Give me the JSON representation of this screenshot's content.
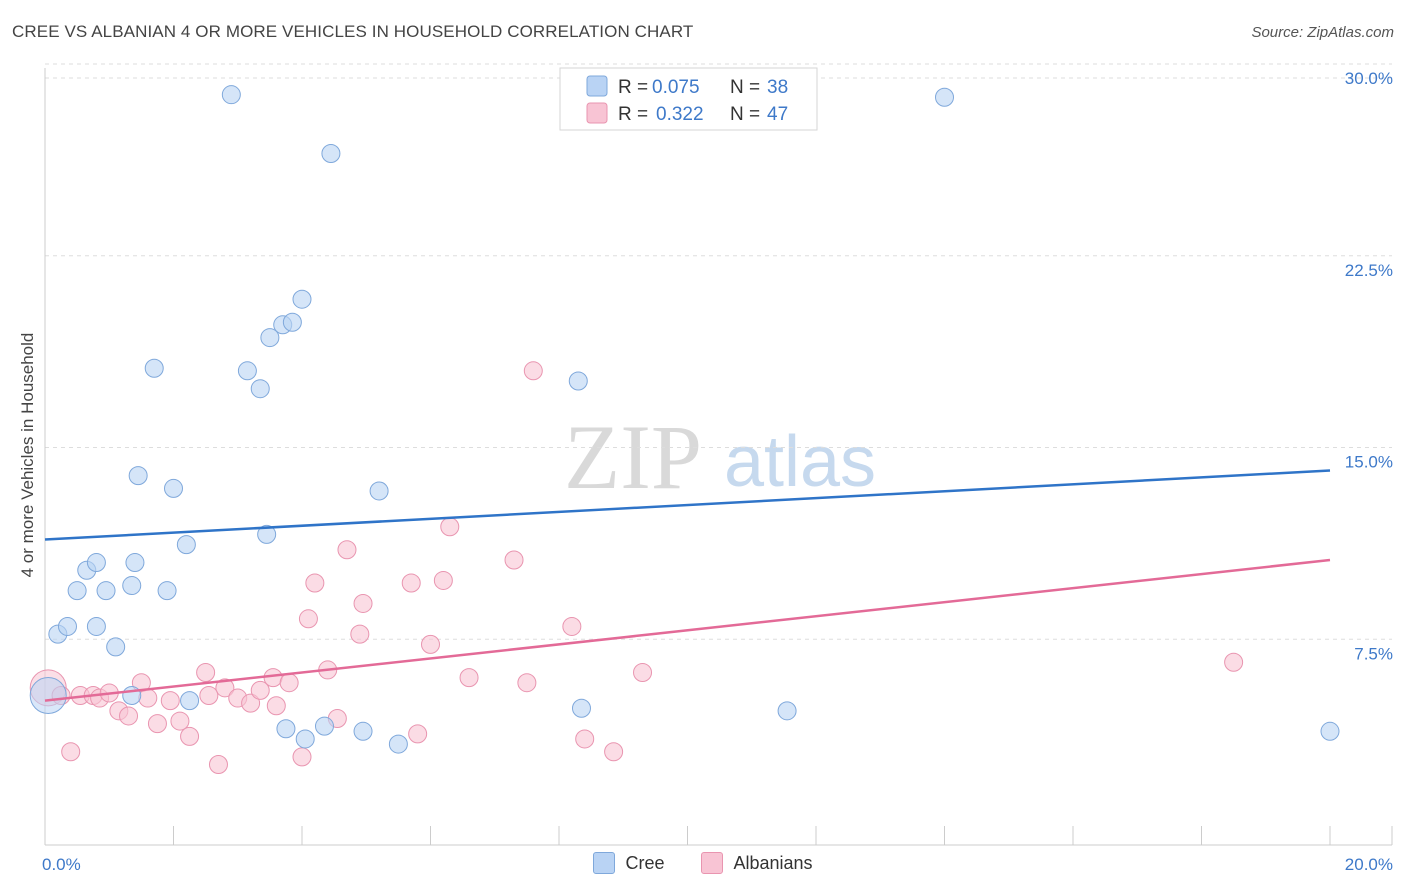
{
  "header": {
    "title": "CREE VS ALBANIAN 4 OR MORE VEHICLES IN HOUSEHOLD CORRELATION CHART",
    "source": "Source: ZipAtlas.com"
  },
  "watermark": {
    "zip": "ZIP",
    "atlas": "atlas"
  },
  "legend_top": {
    "rows": [
      {
        "r_label": "R =",
        "r_value": "0.075",
        "n_label": "N =",
        "n_value": "38"
      },
      {
        "r_label": "R =",
        "r_value": "0.322",
        "n_label": "N =",
        "n_value": "47"
      }
    ]
  },
  "legend_bottom": {
    "cree": "Cree",
    "albanians": "Albanians"
  },
  "colors": {
    "cree_fill": "#b9d3f4",
    "cree_stroke": "#7fa8db",
    "cree_line": "#2f74c8",
    "alb_fill": "#f8c4d4",
    "alb_stroke": "#e995b0",
    "alb_line": "#e36a97",
    "tick_label": "#3e79c9"
  },
  "chart_data": {
    "type": "scatter",
    "title": "CREE VS ALBANIAN 4 OR MORE VEHICLES IN HOUSEHOLD CORRELATION CHART",
    "xlabel": "",
    "ylabel": "4 or more Vehicles in Household",
    "xlim": [
      0,
      20
    ],
    "ylim": [
      0,
      30
    ],
    "x_ticks": [
      {
        "value": 0,
        "label": "0.0%"
      },
      {
        "value": 20,
        "label": "20.0%"
      }
    ],
    "y_ticks": [
      {
        "value": 7.5,
        "label": "7.5%"
      },
      {
        "value": 15,
        "label": "15.0%"
      },
      {
        "value": 22.5,
        "label": "22.5%"
      },
      {
        "value": 30,
        "label": "30.0%"
      }
    ],
    "grid": true,
    "legend_placement": "bottom-center",
    "series": [
      {
        "name": "Cree",
        "r": 0.075,
        "n": 38,
        "trend": [
          [
            0,
            11.4
          ],
          [
            20,
            14.1
          ]
        ],
        "points": [
          [
            0.05,
            5.3
          ],
          [
            0.2,
            7.7
          ],
          [
            0.35,
            8.0
          ],
          [
            0.65,
            10.2
          ],
          [
            0.5,
            9.4
          ],
          [
            0.8,
            10.5
          ],
          [
            0.95,
            9.4
          ],
          [
            1.35,
            9.6
          ],
          [
            1.4,
            10.5
          ],
          [
            0.8,
            8.0
          ],
          [
            1.1,
            7.2
          ],
          [
            1.35,
            5.3
          ],
          [
            1.45,
            13.9
          ],
          [
            1.7,
            18.1
          ],
          [
            1.9,
            9.4
          ],
          [
            2.0,
            13.4
          ],
          [
            2.2,
            11.2
          ],
          [
            2.25,
            5.1
          ],
          [
            2.9,
            28.8
          ],
          [
            3.15,
            18.0
          ],
          [
            3.35,
            17.3
          ],
          [
            3.45,
            11.6
          ],
          [
            3.5,
            19.3
          ],
          [
            3.7,
            19.8
          ],
          [
            3.85,
            19.9
          ],
          [
            4.0,
            20.8
          ],
          [
            4.05,
            3.6
          ],
          [
            4.45,
            26.5
          ],
          [
            4.95,
            3.9
          ],
          [
            5.2,
            13.3
          ],
          [
            5.5,
            3.4
          ],
          [
            8.3,
            17.6
          ],
          [
            8.35,
            4.8
          ],
          [
            11.55,
            4.7
          ],
          [
            14.0,
            28.7
          ],
          [
            20.0,
            3.9
          ],
          [
            4.35,
            4.1
          ],
          [
            3.75,
            4.0
          ]
        ]
      },
      {
        "name": "Albanians",
        "r": 0.322,
        "n": 47,
        "trend": [
          [
            0,
            5.1
          ],
          [
            20,
            10.6
          ]
        ],
        "points": [
          [
            0.05,
            5.6
          ],
          [
            0.25,
            5.3
          ],
          [
            0.4,
            3.1
          ],
          [
            0.55,
            5.3
          ],
          [
            0.75,
            5.3
          ],
          [
            0.85,
            5.2
          ],
          [
            1.0,
            5.4
          ],
          [
            1.15,
            4.7
          ],
          [
            1.3,
            4.5
          ],
          [
            1.5,
            5.8
          ],
          [
            1.6,
            5.2
          ],
          [
            1.75,
            4.2
          ],
          [
            1.95,
            5.1
          ],
          [
            2.1,
            4.3
          ],
          [
            2.25,
            3.7
          ],
          [
            2.5,
            6.2
          ],
          [
            2.7,
            2.6
          ],
          [
            2.8,
            5.6
          ],
          [
            3.0,
            5.2
          ],
          [
            3.2,
            5.0
          ],
          [
            3.35,
            5.5
          ],
          [
            3.55,
            6.0
          ],
          [
            3.6,
            4.9
          ],
          [
            3.8,
            5.8
          ],
          [
            4.0,
            2.9
          ],
          [
            4.1,
            8.3
          ],
          [
            4.2,
            9.7
          ],
          [
            4.4,
            6.3
          ],
          [
            4.55,
            4.4
          ],
          [
            4.7,
            11.0
          ],
          [
            4.9,
            7.7
          ],
          [
            4.95,
            8.9
          ],
          [
            5.7,
            9.7
          ],
          [
            5.8,
            3.8
          ],
          [
            6.0,
            7.3
          ],
          [
            6.2,
            9.8
          ],
          [
            6.3,
            11.9
          ],
          [
            6.6,
            6.0
          ],
          [
            7.3,
            10.6
          ],
          [
            7.5,
            5.8
          ],
          [
            7.6,
            18.0
          ],
          [
            8.2,
            8.0
          ],
          [
            8.4,
            3.6
          ],
          [
            8.85,
            3.1
          ],
          [
            9.3,
            6.2
          ],
          [
            18.5,
            6.6
          ],
          [
            2.55,
            5.3
          ]
        ]
      }
    ]
  }
}
